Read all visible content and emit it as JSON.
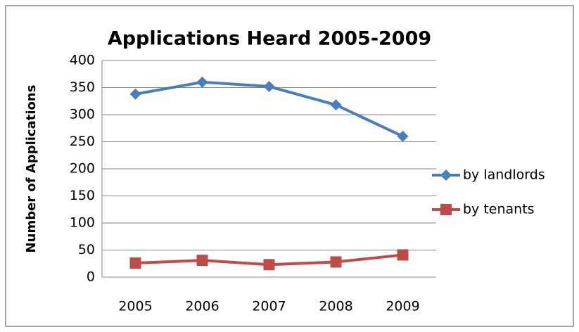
{
  "chart_data": {
    "type": "line",
    "title": "Applications Heard 2005-2009",
    "y_label": "Number of Applications",
    "categories": [
      "2005",
      "2006",
      "2007",
      "2008",
      "2009"
    ],
    "series": [
      {
        "name": "by landlords",
        "color": "#4a7ebb",
        "marker": "diamond",
        "values": [
          338,
          360,
          352,
          318,
          260
        ]
      },
      {
        "name": "by tenants",
        "color": "#be4b48",
        "marker": "square",
        "values": [
          26,
          31,
          23,
          28,
          41
        ]
      }
    ],
    "ylim": [
      0,
      400
    ],
    "yticks": [
      0,
      50,
      100,
      150,
      200,
      250,
      300,
      350,
      400
    ],
    "grid": true,
    "legend": "right"
  }
}
